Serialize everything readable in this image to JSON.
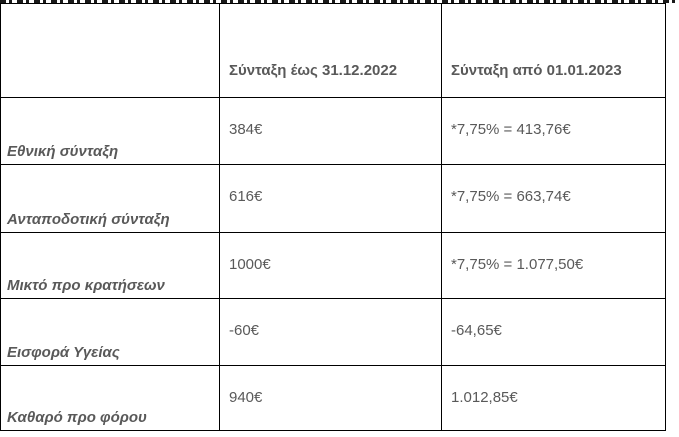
{
  "table": {
    "headers": [
      "",
      "Σύνταξη έως 31.12.2022",
      "Σύνταξη από 01.01.2023"
    ],
    "rows": [
      {
        "label": "Εθνική σύνταξη",
        "before": "384€",
        "after": "*7,75% = 413,76€"
      },
      {
        "label": "Ανταποδοτική σύνταξη",
        "before": "616€",
        "after": "*7,75% = 663,74€"
      },
      {
        "label": "Μικτό προ κρατήσεων",
        "before": "1000€",
        "after": "*7,75% = 1.077,50€"
      },
      {
        "label": "Εισφορά Υγείας",
        "before": "-60€",
        "after": "-64,65€"
      },
      {
        "label": "Καθαρό προ φόρου",
        "before": "940€",
        "after": "1.012,85€"
      }
    ]
  }
}
